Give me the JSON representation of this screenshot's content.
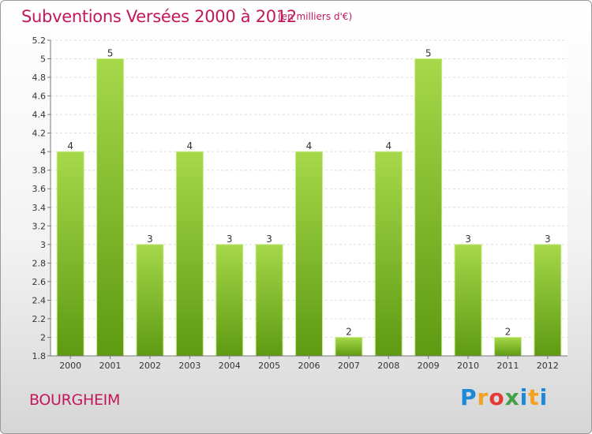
{
  "title": "Subventions Versées 2000 à 2012",
  "subtitle": "(en milliers d'€)",
  "place": "BOURGHEIM",
  "logo": "Proxiti",
  "colors": {
    "title": "#c2185b",
    "bar_top": "#a6d84a",
    "bar_bottom": "#5e9a12",
    "logo_letters": [
      "#1e88d8",
      "#f4a020",
      "#e53935",
      "#43a047",
      "#1e88d8",
      "#f4a020"
    ]
  },
  "chart_data": {
    "type": "bar",
    "categories": [
      "2000",
      "2001",
      "2002",
      "2003",
      "2004",
      "2005",
      "2006",
      "2007",
      "2008",
      "2009",
      "2010",
      "2011",
      "2012"
    ],
    "values": [
      4,
      5,
      3,
      4,
      3,
      3,
      4,
      2,
      4,
      5,
      3,
      2,
      3
    ],
    "data_labels": [
      "4",
      "5",
      "3",
      "4",
      "3",
      "3",
      "4",
      "2",
      "4",
      "5",
      "3",
      "2",
      "3"
    ],
    "ylim": [
      1.8,
      5.2
    ],
    "yticks": [
      1.8,
      2,
      2.2,
      2.4,
      2.6,
      2.8,
      3,
      3.2,
      3.4,
      3.6,
      3.8,
      4,
      4.2,
      4.4,
      4.6,
      4.8,
      5,
      5.2
    ],
    "ytick_labels": [
      "1.8",
      "2",
      "2.2",
      "2.4",
      "2.6",
      "2.8",
      "3",
      "3.2",
      "3.4",
      "3.6",
      "3.8",
      "4",
      "4.2",
      "4.4",
      "4.6",
      "4.8",
      "5",
      "5.2"
    ],
    "grid": "horizontal",
    "legend": "none"
  }
}
